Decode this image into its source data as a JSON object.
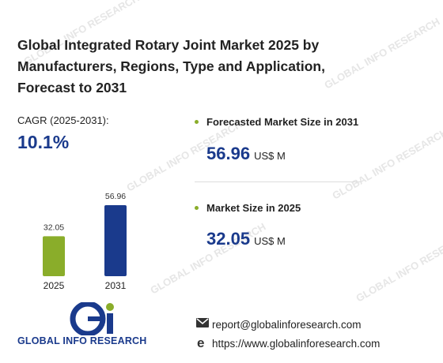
{
  "title": "Global Integrated Rotary Joint Market 2025 by Manufacturers, Regions, Type and Application, Forecast to 2031",
  "watermark": "GLOBAL INFO RESEARCH",
  "cagr": {
    "label": "CAGR (2025-2031):",
    "value": "10.1%"
  },
  "metrics": [
    {
      "label": "Forecasted Market Size in 2031",
      "value": "56.96",
      "unit": "US$ M"
    },
    {
      "label": "Market Size in 2025",
      "value": "32.05",
      "unit": "US$ M"
    }
  ],
  "chart_data": {
    "type": "bar",
    "categories": [
      "2025",
      "2031"
    ],
    "values": [
      32.05,
      56.96
    ],
    "colors": [
      "#8aad2a",
      "#1a3a8c"
    ]
  },
  "logo": "GLOBAL INFO RESEARCH",
  "contact": {
    "email": "report@globalinforesearch.com",
    "website": "https://www.globalinforesearch.com"
  }
}
